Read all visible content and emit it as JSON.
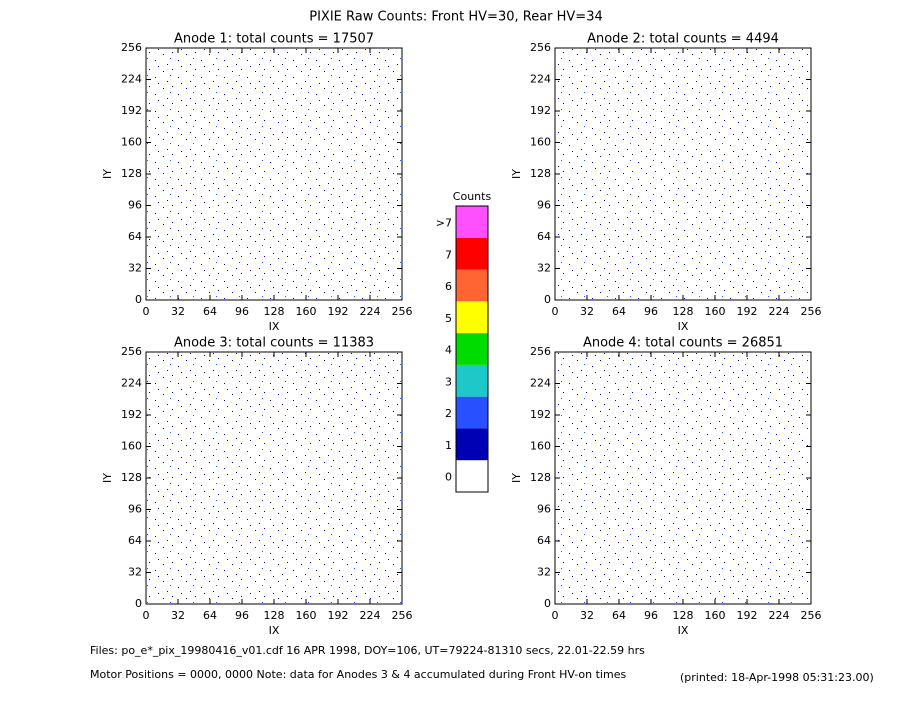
{
  "title": "PIXIE Raw Counts:  Front HV=30, Rear HV=34",
  "chart_data": [
    {
      "type": "heatmap",
      "title": "Anode 1: total counts = 17507",
      "xlabel": "IX",
      "ylabel": "IY",
      "xlim": [
        0,
        256
      ],
      "ylim": [
        0,
        256
      ],
      "xticks": [
        0,
        32,
        64,
        96,
        128,
        160,
        192,
        224,
        256
      ],
      "yticks": [
        0,
        32,
        64,
        96,
        128,
        160,
        192,
        224,
        256
      ]
    },
    {
      "type": "heatmap",
      "title": "Anode 2: total counts = 4494",
      "xlabel": "IX",
      "ylabel": "IY",
      "xlim": [
        0,
        256
      ],
      "ylim": [
        0,
        256
      ],
      "xticks": [
        0,
        32,
        64,
        96,
        128,
        160,
        192,
        224,
        256
      ],
      "yticks": [
        0,
        32,
        64,
        96,
        128,
        160,
        192,
        224,
        256
      ]
    },
    {
      "type": "heatmap",
      "title": "Anode 3: total counts = 11383",
      "xlabel": "IX",
      "ylabel": "IY",
      "xlim": [
        0,
        256
      ],
      "ylim": [
        0,
        256
      ],
      "xticks": [
        0,
        32,
        64,
        96,
        128,
        160,
        192,
        224,
        256
      ],
      "yticks": [
        0,
        32,
        64,
        96,
        128,
        160,
        192,
        224,
        256
      ]
    },
    {
      "type": "heatmap",
      "title": "Anode 4: total counts = 26851",
      "xlabel": "IX",
      "ylabel": "IY",
      "xlim": [
        0,
        256
      ],
      "ylim": [
        0,
        256
      ],
      "xticks": [
        0,
        32,
        64,
        96,
        128,
        160,
        192,
        224,
        256
      ],
      "yticks": [
        0,
        32,
        64,
        96,
        128,
        160,
        192,
        224,
        256
      ]
    }
  ],
  "colorbar": {
    "title": "Counts",
    "labels": [
      "0",
      "1",
      "2",
      "3",
      "4",
      "5",
      "6",
      "7",
      ">7"
    ],
    "colors": [
      "#ffffff",
      "#0000b4",
      "#2850ff",
      "#1ec8c8",
      "#00dc00",
      "#ffff00",
      "#ff6432",
      "#ff0000",
      "#ff50ff"
    ]
  },
  "footer": {
    "files": "Files: po_e*_pix_19980416_v01.cdf    16 APR 1998, DOY=106, UT=79224-81310 secs, 22.01-22.59 hrs",
    "motor": "Motor Positions = 0000, 0000    Note: data for Anodes 3 & 4 accumulated during Front HV-on times",
    "printed": "(printed: 18-Apr-1998 05:31:23.00)"
  }
}
